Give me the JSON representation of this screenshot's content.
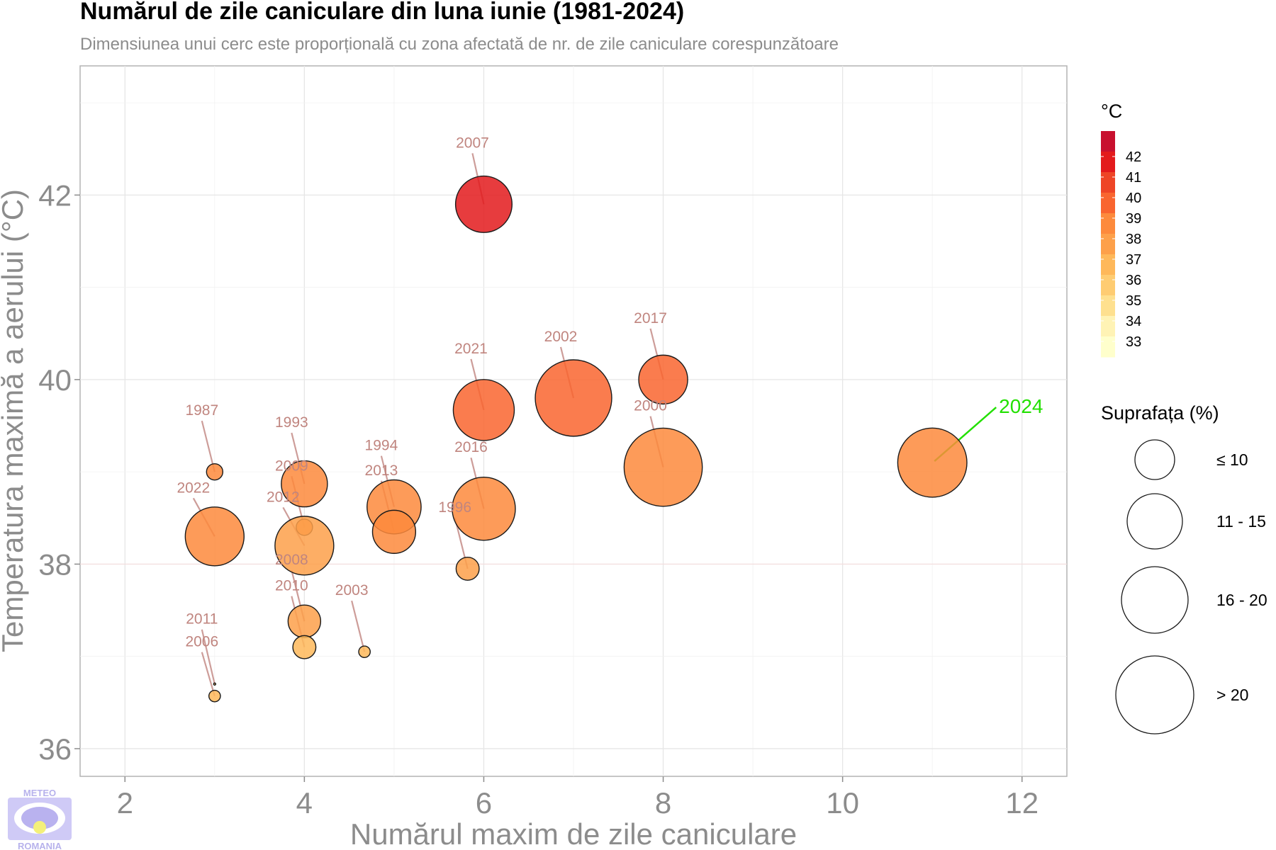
{
  "chart_data": {
    "type": "scatter",
    "title": "Numărul de zile caniculare din luna iunie (1981-2024)",
    "subtitle": "Dimensiunea unui cerc este proporțională cu zona afectată de nr. de zile caniculare corespunzătoare",
    "xlabel": "Numărul maxim de zile caniculare",
    "ylabel": "Temperatura maximă a aerului (°C)",
    "xlim": [
      1.5,
      12.5
    ],
    "ylim": [
      35.7,
      43.4
    ],
    "x_ticks": [
      "2",
      "4",
      "6",
      "8",
      "10",
      "12"
    ],
    "y_ticks": [
      "36",
      "38",
      "40",
      "42"
    ],
    "grid": true,
    "points": [
      {
        "year": "2007",
        "x": 6,
        "y": 41.9,
        "area": 12
      },
      {
        "year": "2017",
        "x": 8,
        "y": 40.0,
        "area": 9
      },
      {
        "year": "2002",
        "x": 7,
        "y": 39.8,
        "area": 22
      },
      {
        "year": "2021",
        "x": 6,
        "y": 39.67,
        "area": 14
      },
      {
        "year": "2000",
        "x": 8,
        "y": 39.05,
        "area": 23
      },
      {
        "year": "2024",
        "x": 11,
        "y": 39.1,
        "area": 18
      },
      {
        "year": "1987",
        "x": 3,
        "y": 39.0,
        "area": 1
      },
      {
        "year": "1993",
        "x": 4,
        "y": 38.87,
        "area": 8
      },
      {
        "year": "2009",
        "x": 4,
        "y": 38.4,
        "area": 1
      },
      {
        "year": "2012",
        "x": 4,
        "y": 38.2,
        "area": 13
      },
      {
        "year": "2022",
        "x": 3,
        "y": 38.3,
        "area": 13
      },
      {
        "year": "1994",
        "x": 5,
        "y": 38.62,
        "area": 11
      },
      {
        "year": "2013",
        "x": 5,
        "y": 38.35,
        "area": 7
      },
      {
        "year": "2016",
        "x": 6,
        "y": 38.6,
        "area": 15
      },
      {
        "year": "1996",
        "x": 5.82,
        "y": 37.95,
        "area": 2
      },
      {
        "year": "2008",
        "x": 4,
        "y": 37.38,
        "area": 4
      },
      {
        "year": "2010",
        "x": 4,
        "y": 37.1,
        "area": 2
      },
      {
        "year": "2003",
        "x": 4.67,
        "y": 37.05,
        "area": 0.5
      },
      {
        "year": "2011",
        "x": 3,
        "y": 36.7,
        "area": 0.01
      },
      {
        "year": "2006",
        "x": 3,
        "y": 36.57,
        "area": 0.5
      }
    ],
    "highlight_year": "2024",
    "color_legend": {
      "title": "°C",
      "labels": [
        "42",
        "41",
        "40",
        "39",
        "38",
        "37",
        "36",
        "35",
        "34",
        "33"
      ],
      "colors": [
        "#c8102e",
        "#e31a1c",
        "#ee4526",
        "#f9652f",
        "#fd8a3c",
        "#fda04a",
        "#feb85a",
        "#fecc72",
        "#fee08f",
        "#fff3b5",
        "#ffffcc"
      ]
    },
    "size_legend": {
      "title": "Suprafața (%)",
      "labels": [
        "≤ 10",
        "11 - 15",
        "16 - 20",
        "> 20"
      ]
    }
  },
  "logo": {
    "top": "METEO",
    "bottom": "ROMANIA"
  }
}
